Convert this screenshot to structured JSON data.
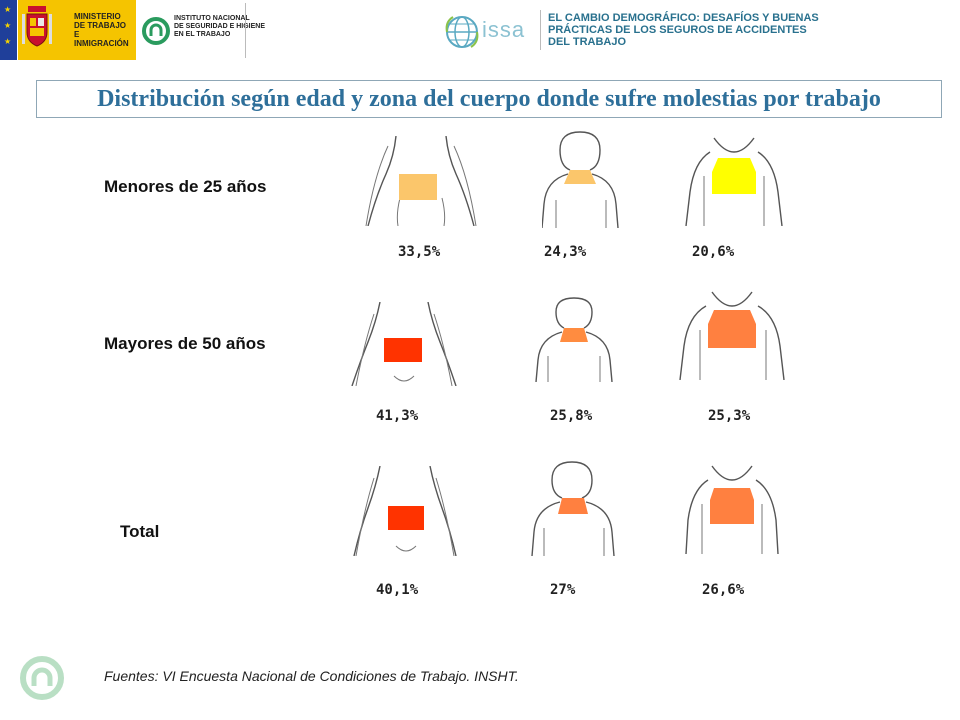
{
  "header": {
    "gov_text": "MINISTERIO\nDE TRABAJO\nE INMIGRACIÓN",
    "insht_text": "INSTITUTO NACIONAL\nDE SEGURIDAD E HIGIENE\nEN EL TRABAJO",
    "issa_word": "issa",
    "issa_title": "EL CAMBIO DEMOGRÁFICO: DESAFÍOS Y BUENAS\nPRÁCTICAS DE LOS SEGUROS DE ACCIDENTES\nDEL TRABAJO"
  },
  "title": "Distribución según edad y zona del cuerpo donde sufre molestias por trabajo",
  "groups": [
    {
      "label": "Menores de 25 años",
      "values": [
        "33,5%",
        "24,3%",
        "20,6%"
      ],
      "colors": [
        "#fbc66b",
        "#fbc66b",
        "#ffff00"
      ]
    },
    {
      "label": "Mayores de 50 años",
      "values": [
        "41,3%",
        "25,8%",
        "25,3%"
      ],
      "colors": [
        "#ff3300",
        "#ff8c40",
        "#ff8040"
      ]
    },
    {
      "label": "Total",
      "values": [
        "40,1%",
        "27%",
        "26,6%"
      ],
      "colors": [
        "#ff3300",
        "#ff8040",
        "#ff8040"
      ]
    }
  ],
  "body_zones": [
    "lower-back",
    "neck",
    "upper-back"
  ],
  "source": "Fuentes: VI Encuesta Nacional de Condiciones de Trabajo. INSHT."
}
